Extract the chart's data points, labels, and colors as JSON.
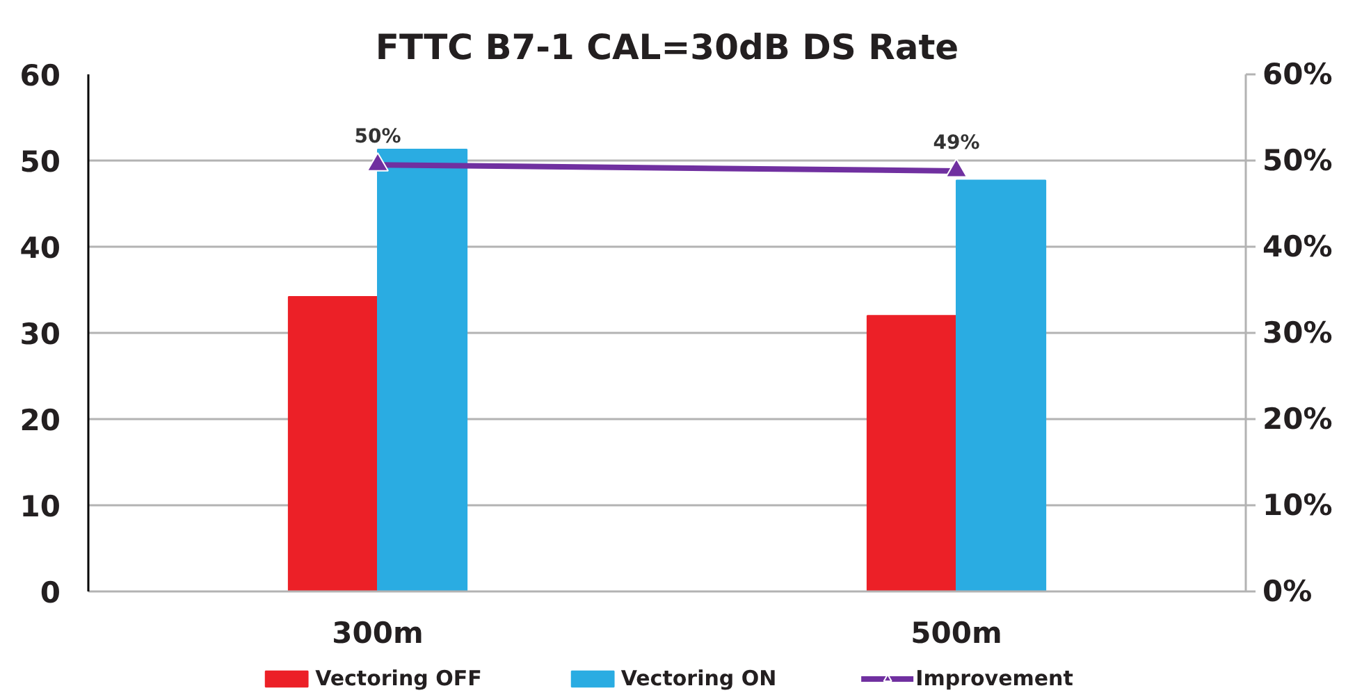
{
  "chart_data": {
    "type": "bar",
    "title": "FTTC B7-1 CAL=30dB DS Rate",
    "categories": [
      "300m",
      "500m"
    ],
    "series": [
      {
        "name": "Vectoring OFF",
        "color": "#ec2027",
        "values": [
          34.2,
          32.0
        ]
      },
      {
        "name": "Vectoring ON",
        "color": "#2aace2",
        "values": [
          51.3,
          47.7
        ]
      },
      {
        "name": "Improvement",
        "type": "line",
        "axis": "y2",
        "color": "#7030a0",
        "marker": "triangle",
        "values": [
          49.5,
          48.8
        ],
        "value_labels": [
          "50%",
          "49%"
        ]
      }
    ],
    "ylim": [
      0,
      60
    ],
    "yticks": [
      0,
      10,
      20,
      30,
      40,
      50,
      60
    ],
    "y2lim": [
      0,
      60
    ],
    "y2ticks": [
      {
        "value": 0,
        "label": "0%"
      },
      {
        "value": 10,
        "label": "10%"
      },
      {
        "value": 20,
        "label": "20%"
      },
      {
        "value": 30,
        "label": "30%"
      },
      {
        "value": 40,
        "label": "40%"
      },
      {
        "value": 50,
        "label": "50%"
      },
      {
        "value": 60,
        "label": "60%"
      }
    ],
    "grid": "y",
    "legend": "bottom"
  }
}
